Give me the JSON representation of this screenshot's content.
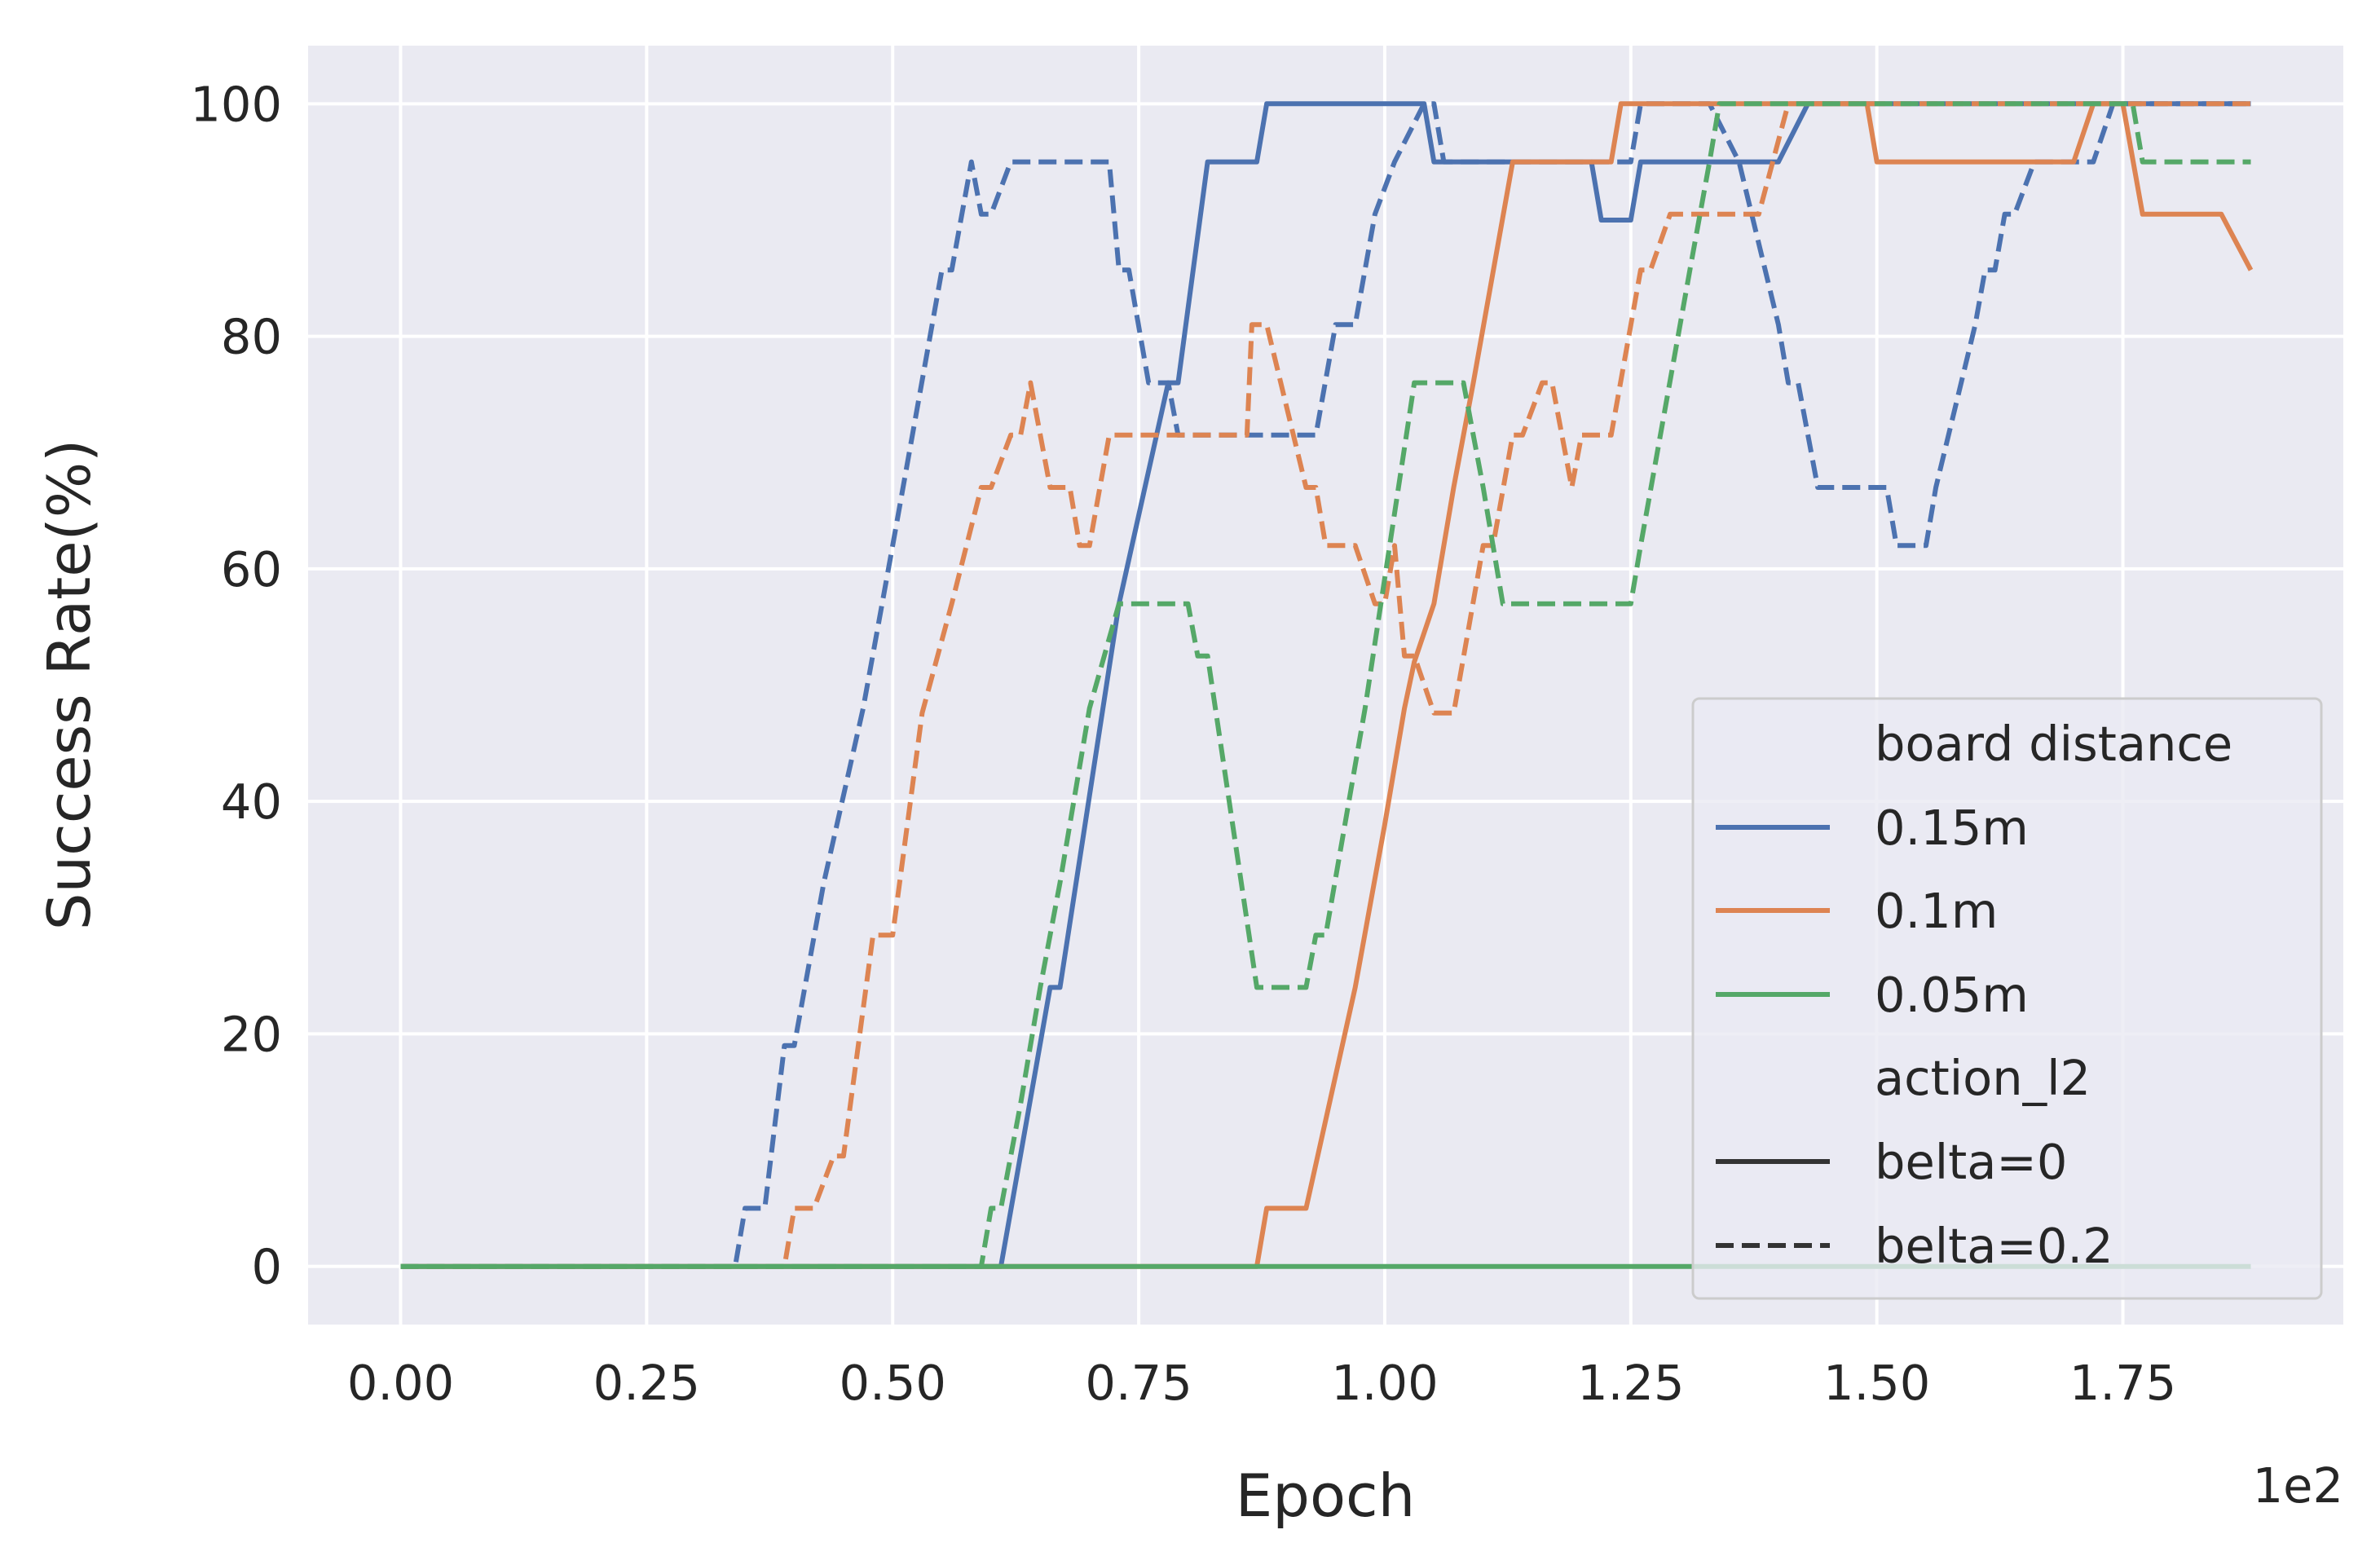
{
  "chart_data": {
    "type": "line",
    "xlabel": "Epoch",
    "ylabel": "Success Rate(%)",
    "x_offset_text": "1e2",
    "x_scale_factor": 100,
    "xlim": [
      -9.4,
      197.4
    ],
    "ylim": [
      -5,
      105
    ],
    "x_ticks": [
      0,
      25,
      50,
      75,
      100,
      125,
      150,
      175
    ],
    "x_tick_labels": [
      "0.00",
      "0.25",
      "0.50",
      "0.75",
      "1.00",
      "1.25",
      "1.50",
      "1.75"
    ],
    "y_ticks": [
      0,
      20,
      40,
      60,
      80,
      100
    ],
    "y_tick_labels": [
      "0",
      "20",
      "40",
      "60",
      "80",
      "100"
    ],
    "grid": true,
    "background": "#eaeaf2",
    "legend": {
      "position": "lower right",
      "hue_title": "board distance",
      "hue_entries": [
        {
          "label": "0.15m",
          "color": "#4c72b0"
        },
        {
          "label": "0.1m",
          "color": "#dd8452"
        },
        {
          "label": "0.05m",
          "color": "#55a868"
        }
      ],
      "style_title": "action_l2",
      "style_entries": [
        {
          "label": "belta=0",
          "dash": "solid"
        },
        {
          "label": "belta=0.2",
          "dash": "dashed"
        }
      ]
    },
    "series": [
      {
        "distance": "0.15m",
        "action_l2": "belta=0",
        "color": "#4c72b0",
        "dash": "solid",
        "points": [
          [
            0,
            0
          ],
          [
            61,
            0
          ],
          [
            66,
            24
          ],
          [
            67,
            24
          ],
          [
            73,
            57
          ],
          [
            78,
            76
          ],
          [
            79,
            76
          ],
          [
            82,
            95
          ],
          [
            87,
            95
          ],
          [
            88,
            100
          ],
          [
            104,
            100
          ],
          [
            105,
            95
          ],
          [
            121,
            95
          ],
          [
            122,
            90
          ],
          [
            125,
            90
          ],
          [
            126,
            95
          ],
          [
            140,
            95
          ],
          [
            143,
            100
          ],
          [
            188,
            100
          ]
        ]
      },
      {
        "distance": "0.15m",
        "action_l2": "belta=0.2",
        "color": "#4c72b0",
        "dash": "dashed",
        "points": [
          [
            0,
            0
          ],
          [
            34,
            0
          ],
          [
            35,
            5
          ],
          [
            37,
            5
          ],
          [
            39,
            19
          ],
          [
            40,
            19
          ],
          [
            43,
            33
          ],
          [
            47,
            48
          ],
          [
            50,
            62
          ],
          [
            55,
            85.7
          ],
          [
            56,
            85.7
          ],
          [
            58,
            95
          ],
          [
            59,
            90.5
          ],
          [
            60,
            90.5
          ],
          [
            62,
            95
          ],
          [
            72,
            95
          ],
          [
            73,
            85.7
          ],
          [
            74,
            85.7
          ],
          [
            76,
            76
          ],
          [
            78,
            76
          ],
          [
            79,
            71.5
          ],
          [
            93,
            71.5
          ],
          [
            95,
            81
          ],
          [
            97,
            81
          ],
          [
            99,
            90.5
          ],
          [
            101,
            95
          ],
          [
            104,
            100
          ],
          [
            105,
            100
          ],
          [
            106,
            95
          ],
          [
            125,
            95
          ],
          [
            126,
            100
          ],
          [
            133,
            100
          ],
          [
            136,
            95
          ],
          [
            140,
            81
          ],
          [
            141,
            76
          ],
          [
            142,
            76
          ],
          [
            144,
            67
          ],
          [
            151,
            67
          ],
          [
            152,
            62
          ],
          [
            155,
            62
          ],
          [
            156,
            67
          ],
          [
            160,
            81
          ],
          [
            161,
            85.7
          ],
          [
            162,
            85.7
          ],
          [
            163,
            90.5
          ],
          [
            164,
            90.5
          ],
          [
            166,
            95
          ],
          [
            172,
            95
          ],
          [
            174,
            100
          ],
          [
            188,
            100
          ]
        ]
      },
      {
        "distance": "0.1m",
        "action_l2": "belta=0",
        "color": "#dd8452",
        "dash": "solid",
        "points": [
          [
            0,
            0
          ],
          [
            87,
            0
          ],
          [
            88,
            5
          ],
          [
            92,
            5
          ],
          [
            97,
            24
          ],
          [
            100,
            38
          ],
          [
            102,
            48
          ],
          [
            103,
            52
          ],
          [
            105,
            57
          ],
          [
            107,
            67
          ],
          [
            109,
            76
          ],
          [
            113,
            95
          ],
          [
            123,
            95
          ],
          [
            124,
            100
          ],
          [
            138,
            100
          ],
          [
            141,
            100
          ],
          [
            149,
            100
          ],
          [
            150,
            95
          ],
          [
            160,
            95
          ],
          [
            164,
            95
          ],
          [
            170,
            95
          ],
          [
            172,
            100
          ],
          [
            175,
            100
          ],
          [
            177,
            90.5
          ],
          [
            183,
            90.5
          ],
          [
            185,
            90.5
          ],
          [
            188,
            85.7
          ]
        ]
      },
      {
        "distance": "0.1m",
        "action_l2": "belta=0.2",
        "color": "#dd8452",
        "dash": "dashed",
        "points": [
          [
            0,
            0
          ],
          [
            39,
            0
          ],
          [
            40,
            5
          ],
          [
            42,
            5
          ],
          [
            44,
            9.5
          ],
          [
            45,
            9.5
          ],
          [
            48,
            28.5
          ],
          [
            50,
            28.5
          ],
          [
            53,
            47.6
          ],
          [
            56,
            57
          ],
          [
            59,
            67
          ],
          [
            60,
            67
          ],
          [
            62,
            71.5
          ],
          [
            63,
            71.5
          ],
          [
            64,
            76
          ],
          [
            66,
            67
          ],
          [
            68,
            67
          ],
          [
            69,
            62
          ],
          [
            70,
            62
          ],
          [
            72,
            71.5
          ],
          [
            80,
            71.5
          ],
          [
            81,
            71.5
          ],
          [
            82,
            71.5
          ],
          [
            86,
            71.5
          ],
          [
            86.5,
            81
          ],
          [
            88,
            81
          ],
          [
            92,
            67
          ],
          [
            93,
            67
          ],
          [
            94,
            62
          ],
          [
            97,
            62
          ],
          [
            99,
            57
          ],
          [
            100,
            57
          ],
          [
            101,
            62
          ],
          [
            102,
            52.5
          ],
          [
            103,
            52.5
          ],
          [
            105,
            47.6
          ],
          [
            107,
            47.6
          ],
          [
            110,
            62
          ],
          [
            111,
            62
          ],
          [
            113,
            71.5
          ],
          [
            114,
            71.5
          ],
          [
            116,
            76
          ],
          [
            117,
            76
          ],
          [
            119,
            67
          ],
          [
            120,
            71.5
          ],
          [
            123,
            71.5
          ],
          [
            126,
            85.7
          ],
          [
            127,
            85.7
          ],
          [
            129,
            90.5
          ],
          [
            138,
            90.5
          ],
          [
            141,
            100
          ],
          [
            188,
            100
          ]
        ]
      },
      {
        "distance": "0.05m",
        "action_l2": "belta=0",
        "color": "#55a868",
        "dash": "solid",
        "points": [
          [
            0,
            0
          ],
          [
            188,
            0
          ]
        ]
      },
      {
        "distance": "0.05m",
        "action_l2": "belta=0.2",
        "color": "#55a868",
        "dash": "dashed",
        "points": [
          [
            0,
            0
          ],
          [
            59,
            0
          ],
          [
            60,
            5
          ],
          [
            61,
            5
          ],
          [
            63,
            14
          ],
          [
            65,
            24
          ],
          [
            67,
            33
          ],
          [
            70,
            48
          ],
          [
            73,
            57
          ],
          [
            80,
            57
          ],
          [
            81,
            52.5
          ],
          [
            82,
            52.5
          ],
          [
            87,
            24
          ],
          [
            92,
            24
          ],
          [
            93,
            28.5
          ],
          [
            94,
            28.5
          ],
          [
            98,
            48
          ],
          [
            103,
            76
          ],
          [
            108,
            76
          ],
          [
            110,
            67
          ],
          [
            112,
            57
          ],
          [
            125,
            57
          ],
          [
            126,
            62
          ],
          [
            131,
            85.7
          ],
          [
            133,
            95
          ],
          [
            134,
            100
          ],
          [
            176,
            100
          ],
          [
            177,
            95
          ],
          [
            188,
            95
          ]
        ]
      }
    ]
  }
}
